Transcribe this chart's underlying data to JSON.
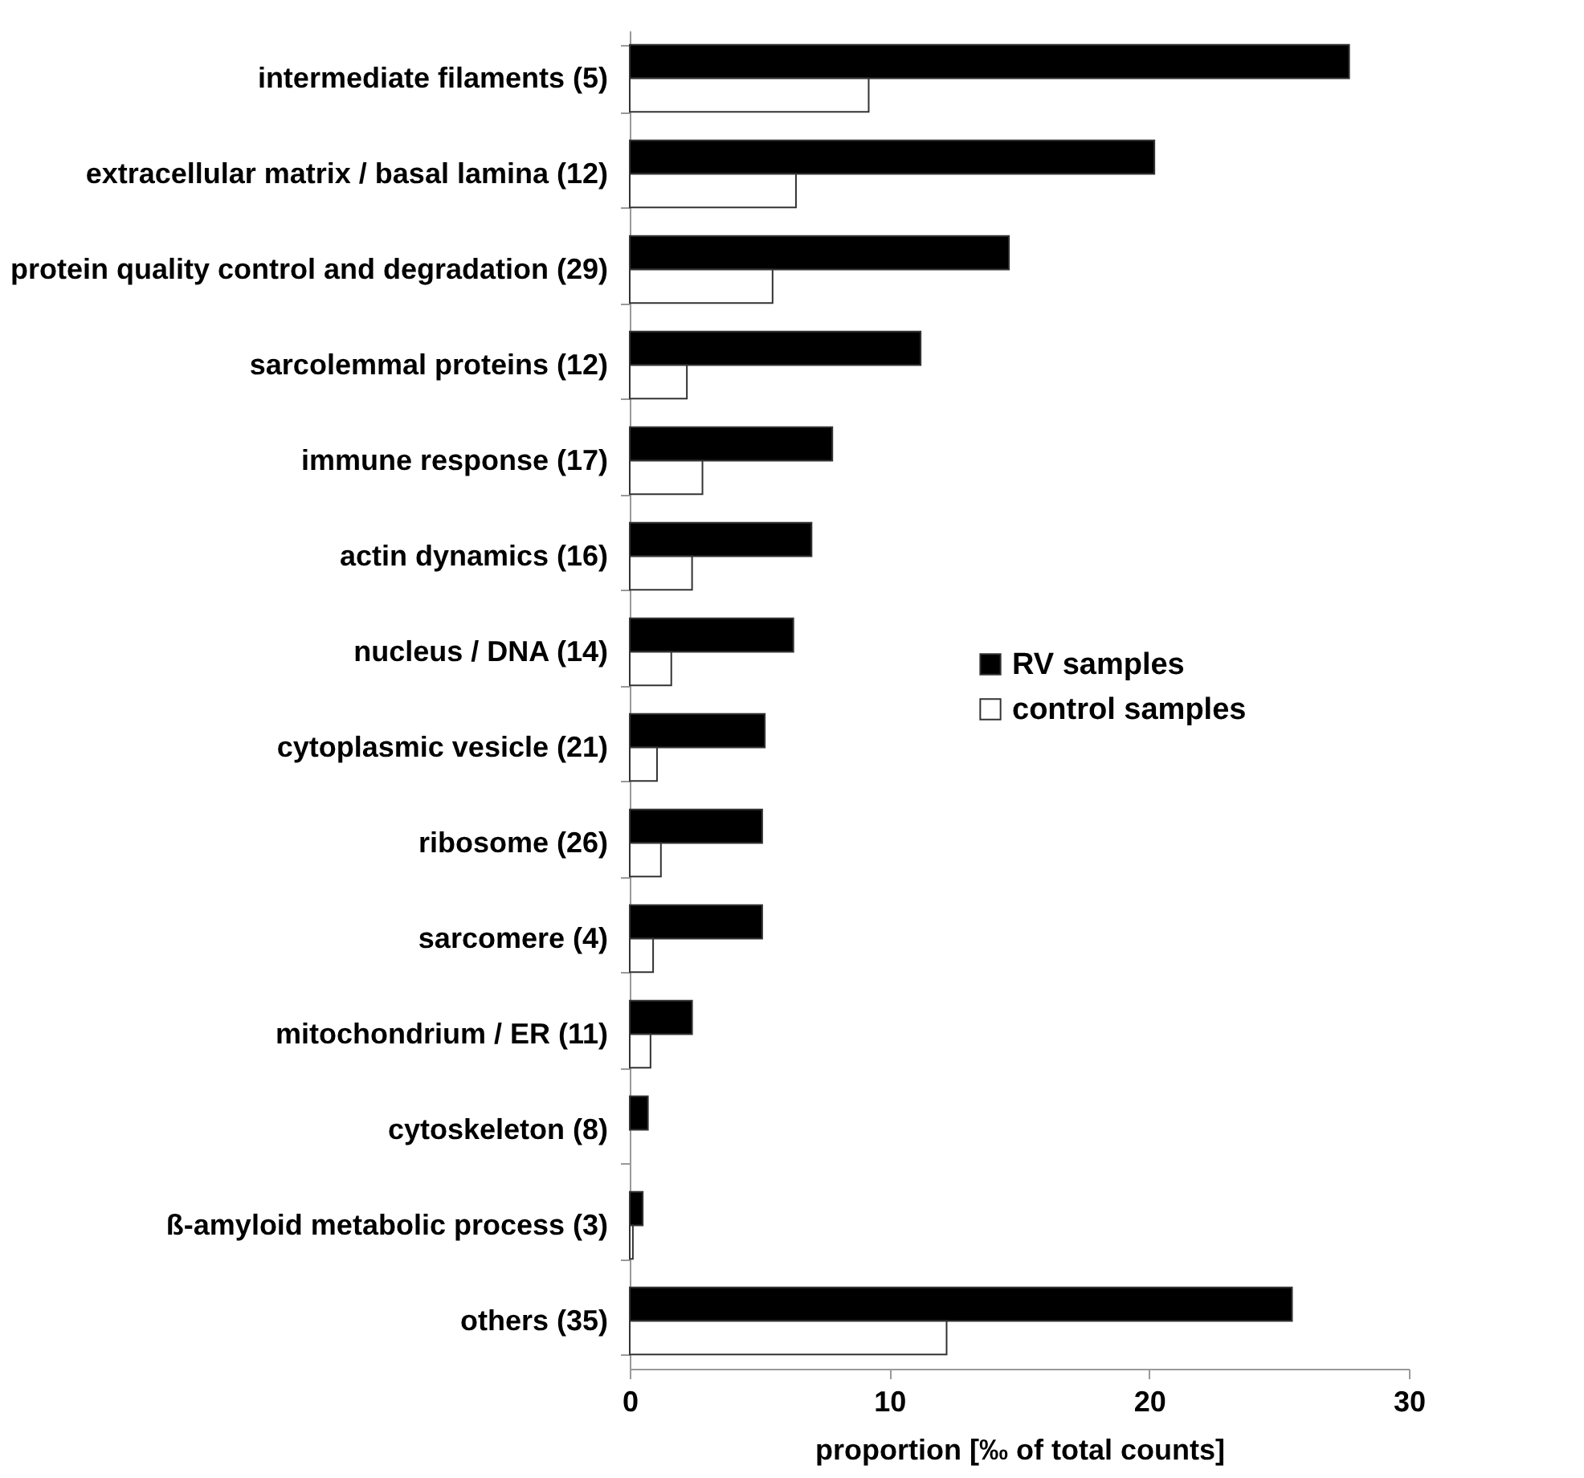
{
  "chart_data": {
    "type": "bar",
    "orientation": "horizontal",
    "xlabel": "proportion [‰ of total counts]",
    "categories": [
      "intermediate filaments (5)",
      "extracellular matrix / basal lamina (12)",
      "protein quality control and degradation (29)",
      "sarcolemmal proteins (12)",
      "immune response (17)",
      "actin dynamics (16)",
      "nucleus / DNA (14)",
      "cytoplasmic vesicle (21)",
      "ribosome (26)",
      "sarcomere (4)",
      "mitochondrium / ER (11)",
      "cytoskeleton (8)",
      "ß-amyloid metabolic process (3)",
      "others (35)"
    ],
    "series": [
      {
        "name": "RV samples",
        "color": "#000000",
        "values": [
          27.7,
          20.2,
          14.6,
          11.2,
          7.8,
          7.0,
          6.3,
          5.2,
          5.1,
          5.1,
          2.4,
          0.7,
          0.5,
          25.5
        ]
      },
      {
        "name": "control samples",
        "color": "#ffffff",
        "values": [
          9.2,
          6.4,
          5.5,
          2.2,
          2.8,
          2.4,
          1.6,
          1.05,
          1.2,
          0.9,
          0.8,
          null,
          0.12,
          12.2
        ]
      }
    ],
    "xlim": [
      0,
      30
    ],
    "xticks": [
      0,
      10,
      20,
      30
    ],
    "grid": false,
    "legend": "right"
  }
}
